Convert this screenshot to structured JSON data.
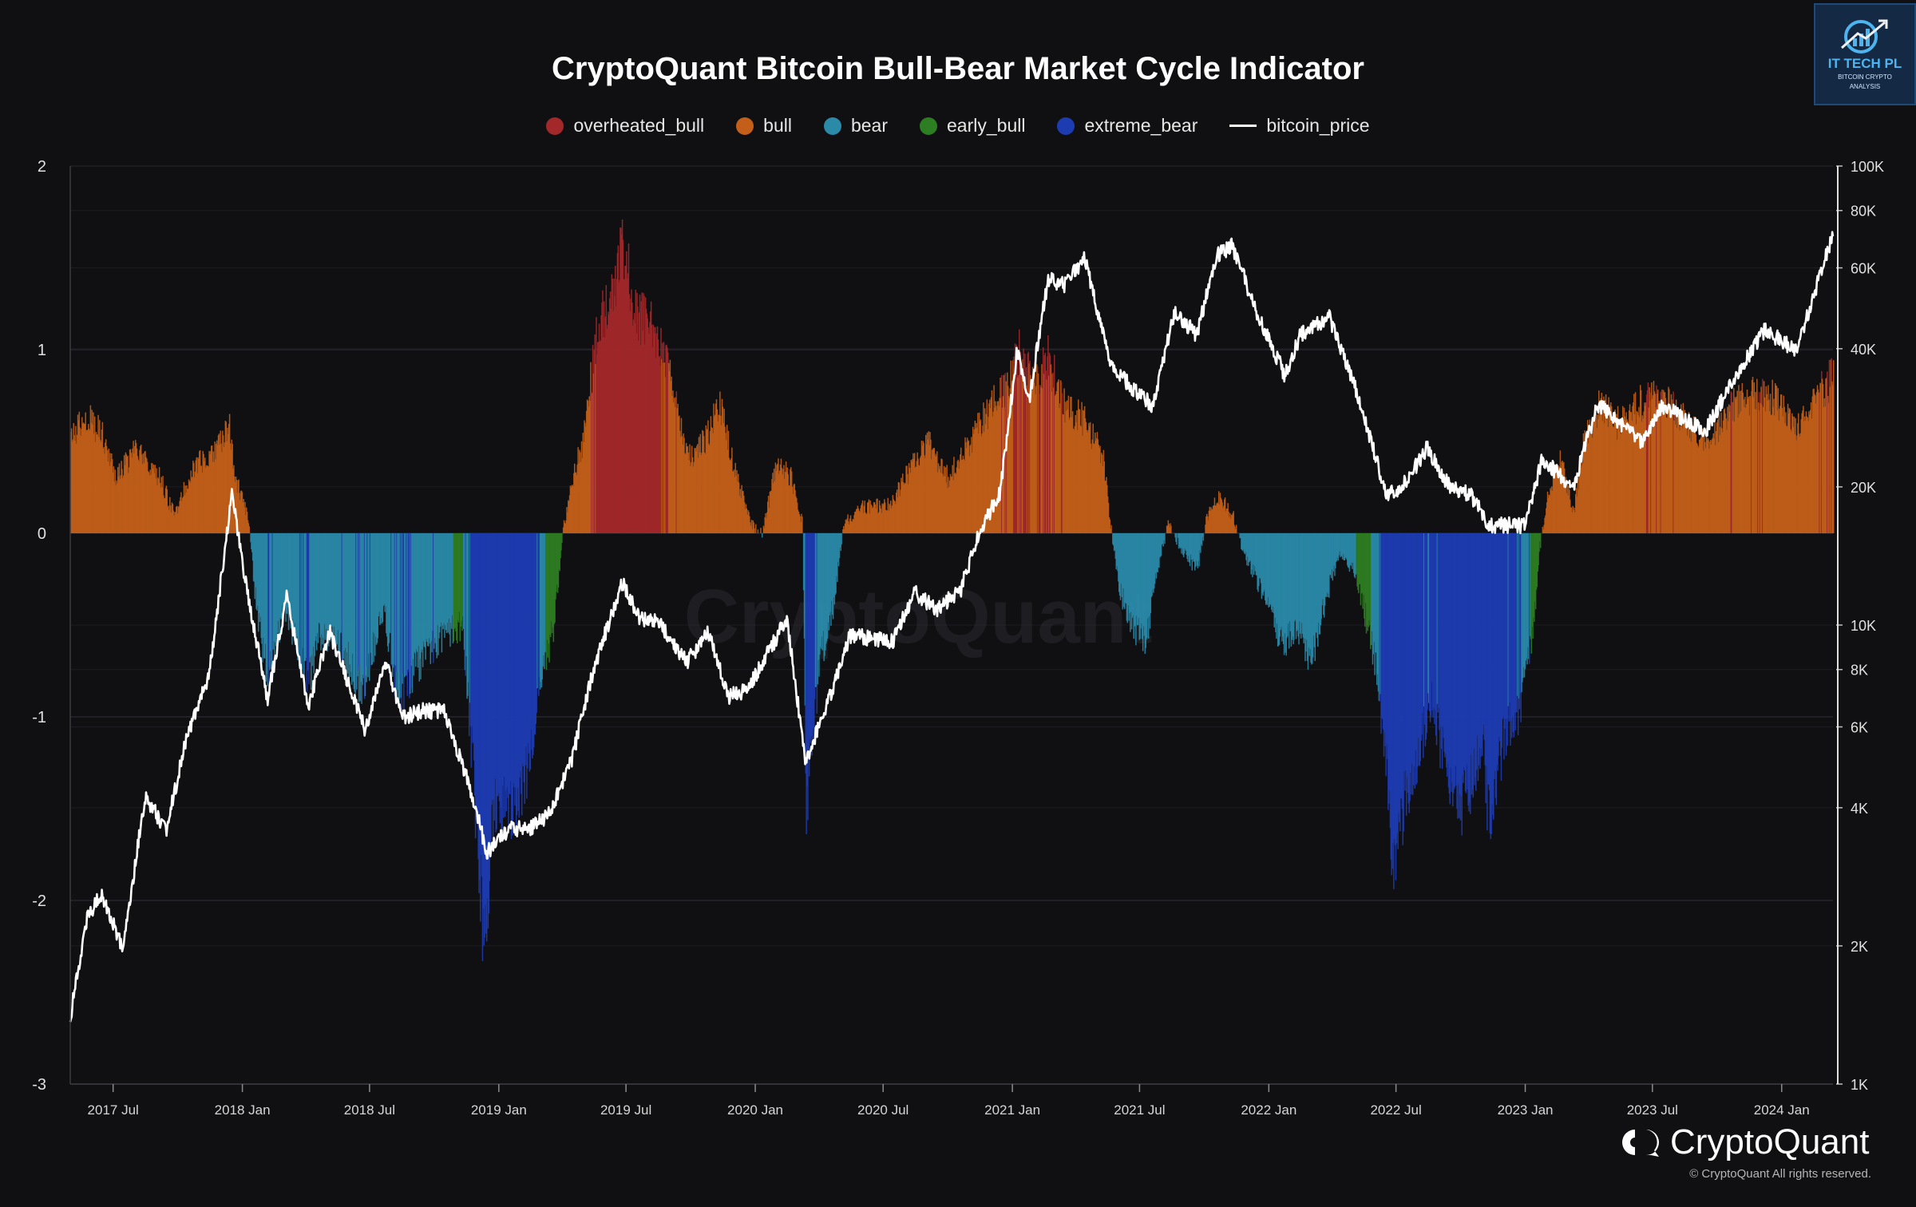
{
  "chart_data": {
    "type": "area",
    "title": "CryptoQuant Bitcoin Bull-Bear Market Cycle Indicator",
    "colors": {
      "overheated_bull": "#a3282a",
      "bull": "#c35f19",
      "bear": "#2a8aa8",
      "early_bull": "#2d7d22",
      "extreme_bear": "#1e3cb2",
      "bitcoin_price": "#ffffff"
    },
    "legend": [
      "overheated_bull",
      "bull",
      "bear",
      "early_bull",
      "extreme_bear",
      "bitcoin_price"
    ],
    "legend_position": "top-center",
    "x_ticks": [
      "2017 Jul",
      "2018 Jan",
      "2018 Jul",
      "2019 Jan",
      "2019 Jul",
      "2020 Jan",
      "2020 Jul",
      "2021 Jan",
      "2021 Jul",
      "2022 Jan",
      "2022 Jul",
      "2023 Jan",
      "2023 Jul",
      "2024 Jan"
    ],
    "x_range": [
      "2017-05-01",
      "2024-03-14"
    ],
    "y_left": {
      "ticks": [
        "2",
        "1",
        "0",
        "-1",
        "-2",
        "-3"
      ],
      "range": [
        -3,
        2
      ]
    },
    "y_right": {
      "scale": "log",
      "ticks": [
        "100K",
        "80K",
        "60K",
        "40K",
        "20K",
        "10K",
        "8K",
        "6K",
        "4K",
        "2K",
        "1K"
      ],
      "tick_values": [
        100000,
        80000,
        60000,
        40000,
        20000,
        10000,
        8000,
        6000,
        4000,
        2000,
        1000
      ],
      "range": [
        1000,
        100000
      ]
    },
    "grid": true,
    "watermark": "CryptoQuant",
    "indicator_keypoints": [
      [
        "2017-05-01",
        0.5
      ],
      [
        "2017-05-20",
        0.65
      ],
      [
        "2017-06-15",
        0.55
      ],
      [
        "2017-07-05",
        0.3
      ],
      [
        "2017-08-01",
        0.45
      ],
      [
        "2017-09-05",
        0.3
      ],
      [
        "2017-09-25",
        0.1
      ],
      [
        "2017-10-20",
        0.35
      ],
      [
        "2017-11-25",
        0.45
      ],
      [
        "2017-12-12",
        0.6
      ],
      [
        "2017-12-22",
        0.3
      ],
      [
        "2018-01-10",
        0.05
      ],
      [
        "2018-01-20",
        -0.4
      ],
      [
        "2018-02-06",
        -0.8
      ],
      [
        "2018-03-01",
        -0.4
      ],
      [
        "2018-04-05",
        -0.8
      ],
      [
        "2018-04-20",
        -0.55
      ],
      [
        "2018-05-20",
        -0.6
      ],
      [
        "2018-06-20",
        -0.85
      ],
      [
        "2018-07-20",
        -0.4
      ],
      [
        "2018-08-10",
        -0.9
      ],
      [
        "2018-09-10",
        -0.7
      ],
      [
        "2018-10-15",
        -0.55
      ],
      [
        "2018-11-10",
        -0.5
      ],
      [
        "2018-11-25",
        -1.3
      ],
      [
        "2018-12-10",
        -2.2
      ],
      [
        "2018-12-25",
        -1.5
      ],
      [
        "2019-01-20",
        -1.5
      ],
      [
        "2019-02-10",
        -1.3
      ],
      [
        "2019-02-25",
        -0.9
      ],
      [
        "2019-03-20",
        -0.5
      ],
      [
        "2019-04-01",
        0.0
      ],
      [
        "2019-04-15",
        0.3
      ],
      [
        "2019-05-01",
        0.5
      ],
      [
        "2019-05-20",
        1.1
      ],
      [
        "2019-06-10",
        1.3
      ],
      [
        "2019-06-26",
        1.55
      ],
      [
        "2019-07-15",
        1.2
      ],
      [
        "2019-08-10",
        1.1
      ],
      [
        "2019-09-05",
        0.8
      ],
      [
        "2019-09-25",
        0.4
      ],
      [
        "2019-10-20",
        0.5
      ],
      [
        "2019-11-10",
        0.7
      ],
      [
        "2019-12-05",
        0.3
      ],
      [
        "2019-12-25",
        0.05
      ],
      [
        "2020-01-10",
        0.0
      ],
      [
        "2020-02-01",
        0.4
      ],
      [
        "2020-02-20",
        0.3
      ],
      [
        "2020-03-08",
        0.05
      ],
      [
        "2020-03-13",
        -1.5
      ],
      [
        "2020-04-01",
        -0.7
      ],
      [
        "2020-04-20",
        -0.4
      ],
      [
        "2020-05-05",
        0.05
      ],
      [
        "2020-06-01",
        0.15
      ],
      [
        "2020-07-10",
        0.15
      ],
      [
        "2020-08-01",
        0.3
      ],
      [
        "2020-09-01",
        0.5
      ],
      [
        "2020-10-01",
        0.3
      ],
      [
        "2020-11-01",
        0.5
      ],
      [
        "2020-12-01",
        0.7
      ],
      [
        "2020-12-25",
        0.8
      ],
      [
        "2021-01-10",
        1.0
      ],
      [
        "2021-02-01",
        0.8
      ],
      [
        "2021-02-20",
        0.95
      ],
      [
        "2021-03-15",
        0.7
      ],
      [
        "2021-04-15",
        0.6
      ],
      [
        "2021-05-10",
        0.4
      ],
      [
        "2021-05-20",
        0.05
      ],
      [
        "2021-06-01",
        -0.3
      ],
      [
        "2021-06-20",
        -0.5
      ],
      [
        "2021-07-10",
        -0.6
      ],
      [
        "2021-07-25",
        -0.2
      ],
      [
        "2021-08-10",
        0.05
      ],
      [
        "2021-09-01",
        -0.1
      ],
      [
        "2021-09-20",
        -0.2
      ],
      [
        "2021-10-05",
        0.1
      ],
      [
        "2021-10-20",
        0.2
      ],
      [
        "2021-11-10",
        0.1
      ],
      [
        "2021-11-25",
        -0.1
      ],
      [
        "2021-12-20",
        -0.3
      ],
      [
        "2022-01-20",
        -0.6
      ],
      [
        "2022-02-10",
        -0.5
      ],
      [
        "2022-03-01",
        -0.7
      ],
      [
        "2022-03-20",
        -0.4
      ],
      [
        "2022-04-10",
        -0.1
      ],
      [
        "2022-05-01",
        -0.2
      ],
      [
        "2022-05-15",
        -0.4
      ],
      [
        "2022-06-01",
        -0.7
      ],
      [
        "2022-06-18",
        -1.3
      ],
      [
        "2022-06-25",
        -1.9
      ],
      [
        "2022-07-15",
        -1.4
      ],
      [
        "2022-08-01",
        -1.2
      ],
      [
        "2022-08-20",
        -0.9
      ],
      [
        "2022-09-10",
        -1.3
      ],
      [
        "2022-10-01",
        -1.5
      ],
      [
        "2022-10-20",
        -1.3
      ],
      [
        "2022-11-01",
        -1.1
      ],
      [
        "2022-11-10",
        -1.6
      ],
      [
        "2022-12-01",
        -1.1
      ],
      [
        "2022-12-20",
        -1.0
      ],
      [
        "2023-01-10",
        -0.6
      ],
      [
        "2023-01-20",
        -0.1
      ],
      [
        "2023-02-01",
        0.2
      ],
      [
        "2023-02-20",
        0.4
      ],
      [
        "2023-03-10",
        0.1
      ],
      [
        "2023-03-25",
        0.5
      ],
      [
        "2023-04-15",
        0.7
      ],
      [
        "2023-05-10",
        0.6
      ],
      [
        "2023-06-10",
        0.7
      ],
      [
        "2023-07-10",
        0.75
      ],
      [
        "2023-08-20",
        0.6
      ],
      [
        "2023-09-20",
        0.5
      ],
      [
        "2023-10-20",
        0.7
      ],
      [
        "2023-11-20",
        0.75
      ],
      [
        "2023-12-20",
        0.75
      ],
      [
        "2024-01-20",
        0.55
      ],
      [
        "2024-02-10",
        0.7
      ],
      [
        "2024-03-01",
        0.8
      ],
      [
        "2024-03-14",
        0.85
      ]
    ],
    "price_keypoints": [
      [
        "2017-05-01",
        1400
      ],
      [
        "2017-05-25",
        2300
      ],
      [
        "2017-06-15",
        2600
      ],
      [
        "2017-07-15",
        1950
      ],
      [
        "2017-08-15",
        4200
      ],
      [
        "2017-09-15",
        3600
      ],
      [
        "2017-10-15",
        5800
      ],
      [
        "2017-11-15",
        7800
      ],
      [
        "2017-12-17",
        19500
      ],
      [
        "2018-01-01",
        13500
      ],
      [
        "2018-02-06",
        6900
      ],
      [
        "2018-03-05",
        11500
      ],
      [
        "2018-04-05",
        6700
      ],
      [
        "2018-05-05",
        9700
      ],
      [
        "2018-06-25",
        5900
      ],
      [
        "2018-07-25",
        8300
      ],
      [
        "2018-08-15",
        6300
      ],
      [
        "2018-09-15",
        6500
      ],
      [
        "2018-10-15",
        6500
      ],
      [
        "2018-11-20",
        4500
      ],
      [
        "2018-12-15",
        3200
      ],
      [
        "2019-01-15",
        3600
      ],
      [
        "2019-02-15",
        3600
      ],
      [
        "2019-03-15",
        3900
      ],
      [
        "2019-04-15",
        5100
      ],
      [
        "2019-05-15",
        7900
      ],
      [
        "2019-06-26",
        12500
      ],
      [
        "2019-07-20",
        10300
      ],
      [
        "2019-08-15",
        10200
      ],
      [
        "2019-09-25",
        8300
      ],
      [
        "2019-10-26",
        9600
      ],
      [
        "2019-11-25",
        7000
      ],
      [
        "2019-12-20",
        7200
      ],
      [
        "2020-02-15",
        10300
      ],
      [
        "2020-03-13",
        5000
      ],
      [
        "2020-04-15",
        6900
      ],
      [
        "2020-05-15",
        9500
      ],
      [
        "2020-07-15",
        9200
      ],
      [
        "2020-08-15",
        11800
      ],
      [
        "2020-09-15",
        10800
      ],
      [
        "2020-10-20",
        12000
      ],
      [
        "2020-11-15",
        16000
      ],
      [
        "2020-12-15",
        19500
      ],
      [
        "2021-01-08",
        40000
      ],
      [
        "2021-01-25",
        31000
      ],
      [
        "2021-02-21",
        57000
      ],
      [
        "2021-03-15",
        55000
      ],
      [
        "2021-04-14",
        63000
      ],
      [
        "2021-05-20",
        37000
      ],
      [
        "2021-06-20",
        33000
      ],
      [
        "2021-07-20",
        30000
      ],
      [
        "2021-08-20",
        48000
      ],
      [
        "2021-09-20",
        43000
      ],
      [
        "2021-10-20",
        64000
      ],
      [
        "2021-11-10",
        67000
      ],
      [
        "2021-12-15",
        48000
      ],
      [
        "2022-01-24",
        35000
      ],
      [
        "2022-02-15",
        43000
      ],
      [
        "2022-03-28",
        47000
      ],
      [
        "2022-05-10",
        31000
      ],
      [
        "2022-06-18",
        19000
      ],
      [
        "2022-07-15",
        20500
      ],
      [
        "2022-08-14",
        24300
      ],
      [
        "2022-09-15",
        20000
      ],
      [
        "2022-10-15",
        19300
      ],
      [
        "2022-11-10",
        16500
      ],
      [
        "2022-12-31",
        16500
      ],
      [
        "2023-01-25",
        23000
      ],
      [
        "2023-03-10",
        20000
      ],
      [
        "2023-04-14",
        30300
      ],
      [
        "2023-06-15",
        25000
      ],
      [
        "2023-07-15",
        30000
      ],
      [
        "2023-09-15",
        26500
      ],
      [
        "2023-10-25",
        34500
      ],
      [
        "2023-12-08",
        44000
      ],
      [
        "2024-01-22",
        39500
      ],
      [
        "2024-02-28",
        60000
      ],
      [
        "2024-03-14",
        71000
      ]
    ]
  },
  "logo": {
    "line1": "IT TECH PL",
    "line2": "BITCOIN CRYPTO",
    "line3": "ANALYSIS"
  },
  "brand": "CryptoQuant",
  "copyright": "© CryptoQuant All rights reserved."
}
